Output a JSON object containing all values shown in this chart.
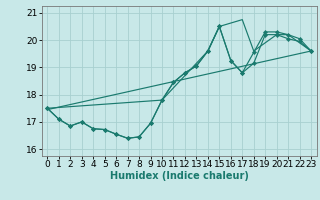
{
  "xlabel": "Humidex (Indice chaleur)",
  "bg_color": "#c8e8e8",
  "grid_color": "#a8d0d0",
  "line_color": "#1a7a6e",
  "xlim": [
    -0.5,
    23.5
  ],
  "ylim": [
    15.75,
    21.25
  ],
  "yticks": [
    16,
    17,
    18,
    19,
    20,
    21
  ],
  "xticks": [
    0,
    1,
    2,
    3,
    4,
    5,
    6,
    7,
    8,
    9,
    10,
    11,
    12,
    13,
    14,
    15,
    16,
    17,
    18,
    19,
    20,
    21,
    22,
    23
  ],
  "line1_x": [
    0,
    1,
    2,
    3,
    4,
    5,
    6,
    7,
    8,
    9,
    10,
    11,
    12,
    13,
    14,
    15,
    16,
    17,
    18,
    19,
    20,
    21,
    22,
    23
  ],
  "line1_y": [
    17.5,
    17.1,
    16.85,
    17.0,
    16.75,
    16.72,
    16.55,
    16.4,
    16.45,
    16.95,
    17.8,
    18.45,
    18.8,
    19.05,
    19.6,
    20.5,
    19.25,
    18.8,
    19.15,
    20.2,
    20.2,
    20.05,
    19.95,
    19.6
  ],
  "line2_x": [
    0,
    1,
    2,
    3,
    4,
    5,
    6,
    7,
    8,
    9,
    10,
    11,
    12,
    13,
    14,
    15,
    16,
    17,
    18,
    19,
    20,
    21,
    22,
    23
  ],
  "line2_y": [
    17.5,
    17.1,
    16.85,
    17.0,
    16.75,
    16.72,
    16.55,
    16.4,
    16.45,
    16.95,
    17.8,
    18.45,
    18.8,
    19.05,
    19.6,
    20.5,
    19.25,
    18.8,
    19.55,
    20.3,
    20.3,
    20.2,
    20.05,
    19.6
  ],
  "line3_x": [
    0,
    10,
    14,
    15,
    17,
    18,
    20,
    21,
    23
  ],
  "line3_y": [
    17.5,
    17.8,
    19.6,
    20.5,
    20.75,
    19.6,
    20.2,
    20.2,
    19.6
  ],
  "trend_x": [
    0,
    23
  ],
  "trend_y": [
    17.45,
    19.6
  ],
  "fontsize_xlabel": 7,
  "fontsize_ticks": 6.5
}
